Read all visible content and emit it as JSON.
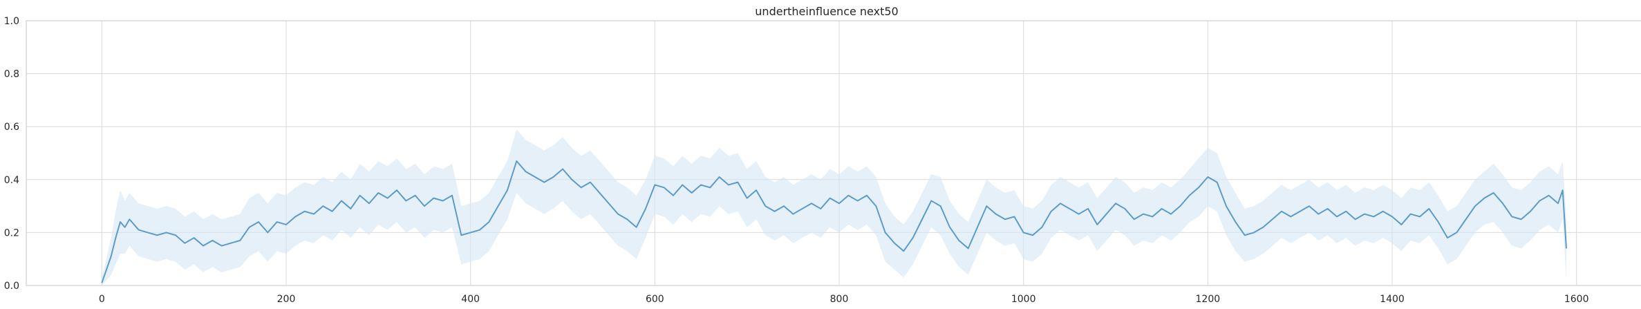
{
  "chart_data": {
    "type": "line",
    "title": "undertheinfluence next50",
    "xlabel": "",
    "ylabel": "",
    "xlim": [
      -82,
      1670
    ],
    "ylim": [
      0,
      1.0
    ],
    "x_ticks": [
      0,
      200,
      400,
      600,
      800,
      1000,
      1200,
      1400,
      1600
    ],
    "y_ticks": [
      0.0,
      0.2,
      0.4,
      0.6,
      0.8,
      1.0
    ],
    "x_tick_labels": [
      "0",
      "200",
      "400",
      "600",
      "800",
      "1000",
      "1200",
      "1400",
      "1600"
    ],
    "y_tick_labels": [
      "0.0",
      "0.2",
      "0.4",
      "0.6",
      "0.8",
      "1.0"
    ],
    "grid": true,
    "series": [
      {
        "color": "#5a9bc8",
        "band_color": "#d6e6f4",
        "points": [
          [
            0,
            0.01
          ],
          [
            5,
            0.06
          ],
          [
            10,
            0.11
          ],
          [
            15,
            0.18
          ],
          [
            20,
            0.24
          ],
          [
            25,
            0.22
          ],
          [
            30,
            0.25
          ],
          [
            40,
            0.21
          ],
          [
            50,
            0.2
          ],
          [
            60,
            0.19
          ],
          [
            70,
            0.2
          ],
          [
            80,
            0.19
          ],
          [
            90,
            0.16
          ],
          [
            100,
            0.18
          ],
          [
            110,
            0.15
          ],
          [
            120,
            0.17
          ],
          [
            130,
            0.15
          ],
          [
            140,
            0.16
          ],
          [
            150,
            0.17
          ],
          [
            160,
            0.22
          ],
          [
            170,
            0.24
          ],
          [
            180,
            0.2
          ],
          [
            190,
            0.24
          ],
          [
            200,
            0.23
          ],
          [
            210,
            0.26
          ],
          [
            220,
            0.28
          ],
          [
            230,
            0.27
          ],
          [
            240,
            0.3
          ],
          [
            250,
            0.28
          ],
          [
            260,
            0.32
          ],
          [
            270,
            0.29
          ],
          [
            280,
            0.34
          ],
          [
            290,
            0.31
          ],
          [
            300,
            0.35
          ],
          [
            310,
            0.33
          ],
          [
            320,
            0.36
          ],
          [
            330,
            0.32
          ],
          [
            340,
            0.34
          ],
          [
            350,
            0.3
          ],
          [
            360,
            0.33
          ],
          [
            370,
            0.32
          ],
          [
            380,
            0.34
          ],
          [
            390,
            0.19
          ],
          [
            400,
            0.2
          ],
          [
            410,
            0.21
          ],
          [
            420,
            0.24
          ],
          [
            430,
            0.3
          ],
          [
            440,
            0.36
          ],
          [
            450,
            0.47
          ],
          [
            460,
            0.43
          ],
          [
            470,
            0.41
          ],
          [
            480,
            0.39
          ],
          [
            490,
            0.41
          ],
          [
            500,
            0.44
          ],
          [
            510,
            0.4
          ],
          [
            520,
            0.37
          ],
          [
            530,
            0.39
          ],
          [
            540,
            0.35
          ],
          [
            550,
            0.31
          ],
          [
            560,
            0.27
          ],
          [
            570,
            0.25
          ],
          [
            580,
            0.22
          ],
          [
            590,
            0.29
          ],
          [
            600,
            0.38
          ],
          [
            610,
            0.37
          ],
          [
            620,
            0.34
          ],
          [
            630,
            0.38
          ],
          [
            640,
            0.35
          ],
          [
            650,
            0.38
          ],
          [
            660,
            0.37
          ],
          [
            670,
            0.41
          ],
          [
            680,
            0.38
          ],
          [
            690,
            0.39
          ],
          [
            700,
            0.33
          ],
          [
            710,
            0.36
          ],
          [
            720,
            0.3
          ],
          [
            730,
            0.28
          ],
          [
            740,
            0.3
          ],
          [
            750,
            0.27
          ],
          [
            760,
            0.29
          ],
          [
            770,
            0.31
          ],
          [
            780,
            0.29
          ],
          [
            790,
            0.33
          ],
          [
            800,
            0.31
          ],
          [
            810,
            0.34
          ],
          [
            820,
            0.32
          ],
          [
            830,
            0.34
          ],
          [
            840,
            0.3
          ],
          [
            850,
            0.2
          ],
          [
            860,
            0.16
          ],
          [
            870,
            0.13
          ],
          [
            880,
            0.18
          ],
          [
            890,
            0.25
          ],
          [
            900,
            0.32
          ],
          [
            910,
            0.3
          ],
          [
            920,
            0.22
          ],
          [
            930,
            0.17
          ],
          [
            940,
            0.14
          ],
          [
            950,
            0.22
          ],
          [
            960,
            0.3
          ],
          [
            970,
            0.27
          ],
          [
            980,
            0.25
          ],
          [
            990,
            0.26
          ],
          [
            1000,
            0.2
          ],
          [
            1010,
            0.19
          ],
          [
            1020,
            0.22
          ],
          [
            1030,
            0.28
          ],
          [
            1040,
            0.31
          ],
          [
            1050,
            0.29
          ],
          [
            1060,
            0.27
          ],
          [
            1070,
            0.29
          ],
          [
            1080,
            0.23
          ],
          [
            1090,
            0.27
          ],
          [
            1100,
            0.31
          ],
          [
            1110,
            0.29
          ],
          [
            1120,
            0.25
          ],
          [
            1130,
            0.27
          ],
          [
            1140,
            0.26
          ],
          [
            1150,
            0.29
          ],
          [
            1160,
            0.27
          ],
          [
            1170,
            0.3
          ],
          [
            1180,
            0.34
          ],
          [
            1190,
            0.37
          ],
          [
            1200,
            0.41
          ],
          [
            1210,
            0.39
          ],
          [
            1220,
            0.3
          ],
          [
            1230,
            0.24
          ],
          [
            1240,
            0.19
          ],
          [
            1250,
            0.2
          ],
          [
            1260,
            0.22
          ],
          [
            1270,
            0.25
          ],
          [
            1280,
            0.28
          ],
          [
            1290,
            0.26
          ],
          [
            1300,
            0.28
          ],
          [
            1310,
            0.3
          ],
          [
            1320,
            0.27
          ],
          [
            1330,
            0.29
          ],
          [
            1340,
            0.26
          ],
          [
            1350,
            0.28
          ],
          [
            1360,
            0.25
          ],
          [
            1370,
            0.27
          ],
          [
            1380,
            0.26
          ],
          [
            1390,
            0.28
          ],
          [
            1400,
            0.26
          ],
          [
            1410,
            0.23
          ],
          [
            1420,
            0.27
          ],
          [
            1430,
            0.26
          ],
          [
            1440,
            0.29
          ],
          [
            1450,
            0.24
          ],
          [
            1460,
            0.18
          ],
          [
            1470,
            0.2
          ],
          [
            1480,
            0.25
          ],
          [
            1490,
            0.3
          ],
          [
            1500,
            0.33
          ],
          [
            1510,
            0.35
          ],
          [
            1520,
            0.31
          ],
          [
            1530,
            0.26
          ],
          [
            1540,
            0.25
          ],
          [
            1550,
            0.28
          ],
          [
            1560,
            0.32
          ],
          [
            1570,
            0.34
          ],
          [
            1580,
            0.31
          ],
          [
            1585,
            0.36
          ],
          [
            1589,
            0.14
          ]
        ],
        "band_halfwidth": [
          0.02,
          0.04,
          0.07,
          0.1,
          0.12,
          0.1,
          0.1,
          0.1,
          0.1,
          0.1,
          0.1,
          0.1,
          0.1,
          0.1,
          0.1,
          0.1,
          0.1,
          0.1,
          0.1,
          0.11,
          0.11,
          0.11,
          0.11,
          0.11,
          0.11,
          0.11,
          0.11,
          0.11,
          0.11,
          0.11,
          0.11,
          0.12,
          0.12,
          0.12,
          0.12,
          0.12,
          0.12,
          0.12,
          0.12,
          0.12,
          0.12,
          0.12,
          0.11,
          0.11,
          0.11,
          0.11,
          0.11,
          0.11,
          0.12,
          0.12,
          0.12,
          0.12,
          0.12,
          0.12,
          0.12,
          0.12,
          0.12,
          0.12,
          0.12,
          0.12,
          0.12,
          0.12,
          0.11,
          0.11,
          0.11,
          0.11,
          0.11,
          0.11,
          0.11,
          0.11,
          0.11,
          0.11,
          0.11,
          0.11,
          0.11,
          0.11,
          0.11,
          0.11,
          0.11,
          0.11,
          0.11,
          0.11,
          0.11,
          0.11,
          0.11,
          0.11,
          0.11,
          0.11,
          0.11,
          0.1,
          0.1,
          0.1,
          0.1,
          0.1,
          0.11,
          0.1,
          0.1,
          0.1,
          0.1,
          0.1,
          0.1,
          0.1,
          0.1,
          0.1,
          0.1,
          0.1,
          0.1,
          0.1,
          0.1,
          0.1,
          0.1,
          0.1,
          0.1,
          0.1,
          0.1,
          0.1,
          0.1,
          0.1,
          0.1,
          0.1,
          0.1,
          0.1,
          0.11,
          0.11,
          0.11,
          0.11,
          0.11,
          0.1,
          0.1,
          0.1,
          0.1,
          0.1,
          0.1,
          0.1,
          0.1,
          0.1,
          0.1,
          0.1,
          0.1,
          0.1,
          0.1,
          0.1,
          0.1,
          0.1,
          0.1,
          0.1,
          0.1,
          0.1,
          0.1,
          0.1,
          0.1,
          0.1,
          0.1,
          0.1,
          0.11,
          0.11,
          0.11,
          0.11,
          0.11,
          0.11,
          0.11,
          0.11,
          0.11,
          0.12,
          0.12,
          0.06
        ]
      }
    ]
  }
}
